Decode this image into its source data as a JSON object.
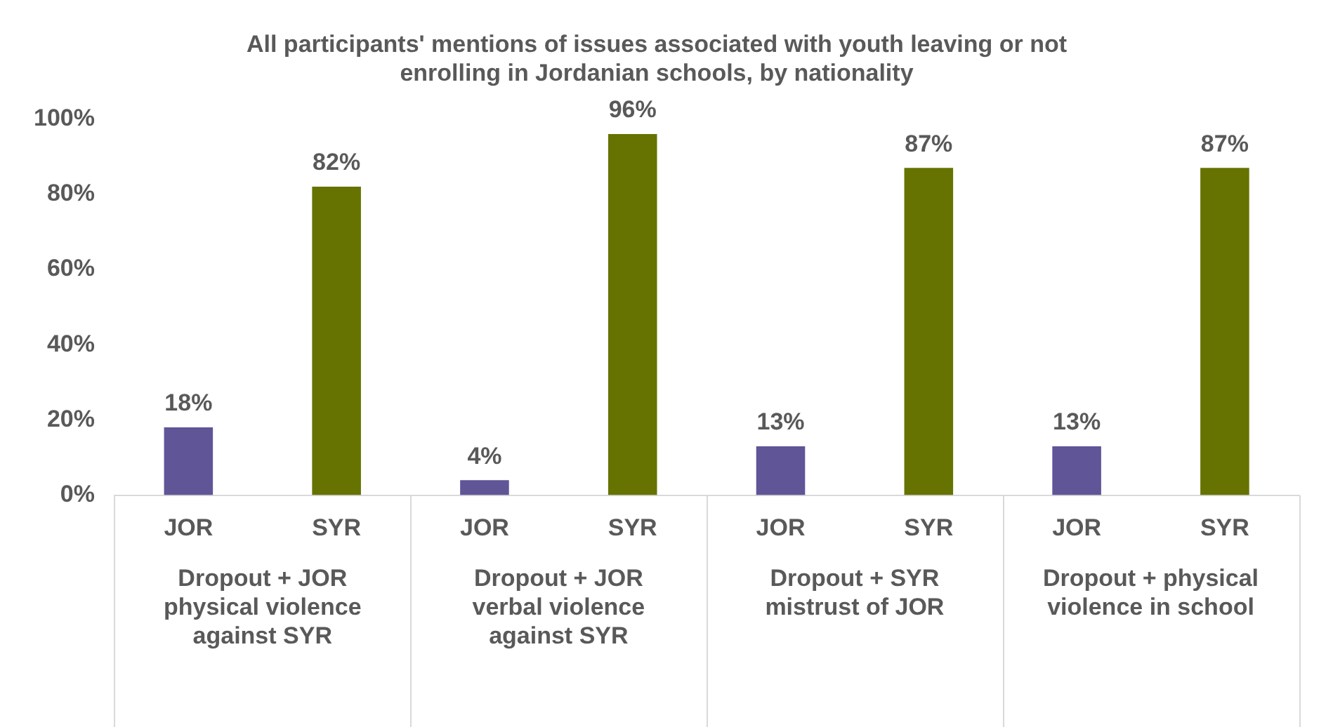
{
  "chart_data": {
    "type": "bar",
    "title": "All participants' mentions of issues associated with youth leaving or not enrolling in Jordanian schools, by nationality",
    "categories": [
      "Dropout + JOR physical violence against SYR",
      "Dropout + JOR verbal violence against SYR",
      "Dropout + SYR mistrust of JOR",
      "Dropout + physical violence in school"
    ],
    "series": [
      {
        "name": "JOR",
        "color": "#5f5597",
        "values": [
          18,
          4,
          13,
          13
        ],
        "value_labels": [
          "18%",
          "4%",
          "13%",
          "13%"
        ]
      },
      {
        "name": "SYR",
        "color": "#667300",
        "values": [
          82,
          96,
          87,
          87
        ],
        "value_labels": [
          "82%",
          "96%",
          "87%",
          "87%"
        ]
      }
    ],
    "ylim": [
      0,
      100
    ],
    "yticks": [
      {
        "value": 0,
        "label": "0%"
      },
      {
        "value": 20,
        "label": "20%"
      },
      {
        "value": 40,
        "label": "40%"
      },
      {
        "value": 60,
        "label": "60%"
      },
      {
        "value": 80,
        "label": "80%"
      },
      {
        "value": 100,
        "label": "100%"
      }
    ],
    "grid": false,
    "legend": false
  }
}
